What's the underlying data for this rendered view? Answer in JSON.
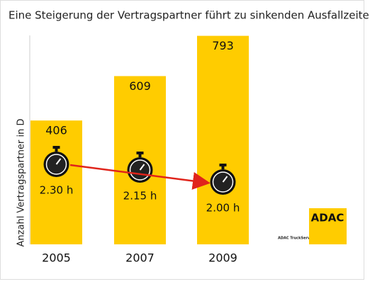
{
  "chart_data": {
    "type": "bar",
    "title": "Eine Steigerung der Vertragspartner führt zu sinkenden Ausfallzeiten",
    "y_label": "Anzahl Vertragspartner in D",
    "categories": [
      "2005",
      "2007",
      "2009"
    ],
    "values": [
      406,
      609,
      793
    ],
    "color": "#ffcc00",
    "ylim": [
      -160,
      850
    ],
    "annotations": [
      "2.30 h",
      "2.15 h",
      "2.00 h"
    ],
    "logo": {
      "text": "ADAC",
      "subtitle": "ADAC TruckService"
    }
  }
}
